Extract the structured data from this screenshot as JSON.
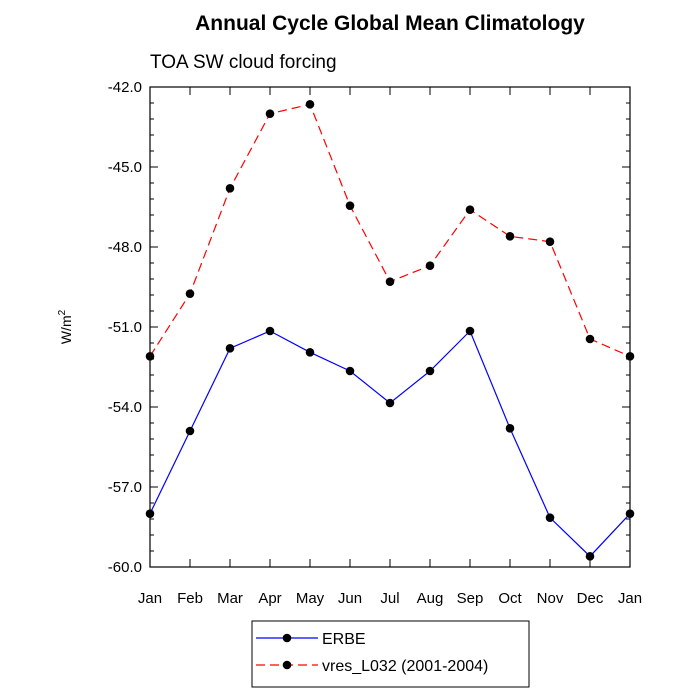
{
  "chart_data": {
    "type": "line",
    "title": "Annual Cycle Global Mean Climatology",
    "subtitle": "TOA SW cloud forcing",
    "xlabel": "",
    "ylabel": "W/m",
    "ylabel_superscript": "2",
    "categories": [
      "Jan",
      "Feb",
      "Mar",
      "Apr",
      "May",
      "Jun",
      "Jul",
      "Aug",
      "Sep",
      "Oct",
      "Nov",
      "Dec",
      "Jan"
    ],
    "yticks": [
      "-42.0",
      "-45.0",
      "-48.0",
      "-51.0",
      "-54.0",
      "-57.0",
      "-60.0"
    ],
    "ylim": [
      -60.0,
      -42.0
    ],
    "grid": false,
    "legend_position": "bottom",
    "series": [
      {
        "name": "ERBE",
        "color": "#0000ff",
        "dash": "solid",
        "marker": "filled-circle",
        "values": [
          -58.0,
          -54.9,
          -51.8,
          -51.15,
          -51.95,
          -52.65,
          -53.85,
          -52.65,
          -51.15,
          -54.8,
          -58.15,
          -59.6,
          -58.0
        ]
      },
      {
        "name": "vres_L032 (2001-2004)",
        "color": "#ff0000",
        "dash": "dashed",
        "marker": "filled-circle",
        "values": [
          -52.1,
          -49.75,
          -45.8,
          -43.0,
          -42.65,
          -46.45,
          -49.3,
          -48.7,
          -46.6,
          -47.6,
          -47.8,
          -51.45,
          -52.1
        ]
      }
    ]
  }
}
